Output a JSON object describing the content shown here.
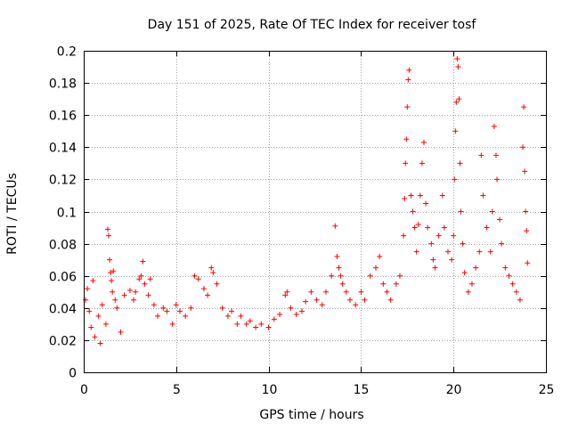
{
  "chart_data": {
    "type": "scatter",
    "title": "Day 151 of 2025, Rate Of TEC Index for receiver tosf",
    "xlabel": "GPS time / hours",
    "ylabel": "ROTI / TECUs",
    "xlim": [
      0,
      25
    ],
    "ylim": [
      0,
      0.2
    ],
    "x_ticks": [
      0,
      5,
      10,
      15,
      20,
      25
    ],
    "x_tick_labels": [
      "0",
      "5",
      "10",
      "15",
      "20",
      "25"
    ],
    "y_ticks": [
      0,
      0.02,
      0.04,
      0.06,
      0.08,
      0.1,
      0.12,
      0.14,
      0.16,
      0.18,
      0.2
    ],
    "y_tick_labels": [
      "0",
      "0.02",
      "0.04",
      "0.06",
      "0.08",
      "0.1",
      "0.12",
      "0.14",
      "0.16",
      "0.18",
      "0.2"
    ],
    "grid": true,
    "marker": "+",
    "series": [
      {
        "name": "ROTI",
        "color": "#ff0000",
        "points": [
          [
            0.1,
            0.045
          ],
          [
            0.2,
            0.052
          ],
          [
            0.3,
            0.038
          ],
          [
            0.4,
            0.028
          ],
          [
            0.5,
            0.057
          ],
          [
            0.6,
            0.022
          ],
          [
            0.8,
            0.035
          ],
          [
            0.9,
            0.018
          ],
          [
            1.0,
            0.042
          ],
          [
            1.2,
            0.03
          ],
          [
            1.3,
            0.089
          ],
          [
            1.35,
            0.085
          ],
          [
            1.4,
            0.07
          ],
          [
            1.45,
            0.062
          ],
          [
            1.5,
            0.057
          ],
          [
            1.55,
            0.05
          ],
          [
            1.6,
            0.063
          ],
          [
            1.7,
            0.045
          ],
          [
            1.8,
            0.04
          ],
          [
            2.0,
            0.025
          ],
          [
            2.2,
            0.048
          ],
          [
            2.5,
            0.051
          ],
          [
            2.7,
            0.045
          ],
          [
            2.8,
            0.05
          ],
          [
            3.0,
            0.058
          ],
          [
            3.1,
            0.06
          ],
          [
            3.2,
            0.069
          ],
          [
            3.3,
            0.055
          ],
          [
            3.5,
            0.048
          ],
          [
            3.6,
            0.058
          ],
          [
            3.8,
            0.042
          ],
          [
            4.0,
            0.035
          ],
          [
            4.3,
            0.04
          ],
          [
            4.5,
            0.038
          ],
          [
            4.8,
            0.03
          ],
          [
            5.0,
            0.042
          ],
          [
            5.2,
            0.038
          ],
          [
            5.5,
            0.035
          ],
          [
            5.8,
            0.04
          ],
          [
            6.0,
            0.06
          ],
          [
            6.2,
            0.058
          ],
          [
            6.5,
            0.052
          ],
          [
            6.7,
            0.048
          ],
          [
            6.9,
            0.065
          ],
          [
            7.0,
            0.062
          ],
          [
            7.2,
            0.055
          ],
          [
            7.5,
            0.04
          ],
          [
            7.8,
            0.035
          ],
          [
            8.0,
            0.038
          ],
          [
            8.3,
            0.03
          ],
          [
            8.5,
            0.035
          ],
          [
            8.8,
            0.03
          ],
          [
            9.0,
            0.032
          ],
          [
            9.3,
            0.028
          ],
          [
            9.6,
            0.03
          ],
          [
            10.0,
            0.028
          ],
          [
            10.3,
            0.033
          ],
          [
            10.6,
            0.036
          ],
          [
            10.9,
            0.048
          ],
          [
            11.0,
            0.05
          ],
          [
            11.2,
            0.04
          ],
          [
            11.5,
            0.036
          ],
          [
            11.8,
            0.038
          ],
          [
            12.0,
            0.044
          ],
          [
            12.3,
            0.05
          ],
          [
            12.6,
            0.045
          ],
          [
            12.9,
            0.042
          ],
          [
            13.1,
            0.05
          ],
          [
            13.4,
            0.06
          ],
          [
            13.6,
            0.091
          ],
          [
            13.7,
            0.072
          ],
          [
            13.8,
            0.065
          ],
          [
            13.9,
            0.06
          ],
          [
            14.0,
            0.055
          ],
          [
            14.2,
            0.05
          ],
          [
            14.4,
            0.045
          ],
          [
            14.7,
            0.042
          ],
          [
            15.0,
            0.05
          ],
          [
            15.2,
            0.045
          ],
          [
            15.5,
            0.06
          ],
          [
            15.8,
            0.065
          ],
          [
            16.0,
            0.072
          ],
          [
            16.2,
            0.055
          ],
          [
            16.4,
            0.05
          ],
          [
            16.6,
            0.045
          ],
          [
            16.9,
            0.055
          ],
          [
            17.1,
            0.06
          ],
          [
            17.3,
            0.085
          ],
          [
            17.35,
            0.108
          ],
          [
            17.4,
            0.13
          ],
          [
            17.45,
            0.145
          ],
          [
            17.5,
            0.165
          ],
          [
            17.55,
            0.182
          ],
          [
            17.6,
            0.188
          ],
          [
            17.7,
            0.11
          ],
          [
            17.8,
            0.1
          ],
          [
            17.9,
            0.09
          ],
          [
            18.0,
            0.075
          ],
          [
            18.1,
            0.092
          ],
          [
            18.2,
            0.11
          ],
          [
            18.3,
            0.13
          ],
          [
            18.4,
            0.143
          ],
          [
            18.5,
            0.105
          ],
          [
            18.6,
            0.09
          ],
          [
            18.8,
            0.08
          ],
          [
            18.9,
            0.07
          ],
          [
            19.0,
            0.065
          ],
          [
            19.2,
            0.085
          ],
          [
            19.4,
            0.11
          ],
          [
            19.5,
            0.09
          ],
          [
            19.7,
            0.075
          ],
          [
            19.9,
            0.07
          ],
          [
            20.0,
            0.085
          ],
          [
            20.05,
            0.12
          ],
          [
            20.1,
            0.15
          ],
          [
            20.15,
            0.168
          ],
          [
            20.2,
            0.195
          ],
          [
            20.25,
            0.19
          ],
          [
            20.3,
            0.17
          ],
          [
            20.35,
            0.13
          ],
          [
            20.4,
            0.1
          ],
          [
            20.5,
            0.08
          ],
          [
            20.6,
            0.062
          ],
          [
            20.8,
            0.05
          ],
          [
            21.0,
            0.055
          ],
          [
            21.2,
            0.065
          ],
          [
            21.4,
            0.075
          ],
          [
            21.5,
            0.135
          ],
          [
            21.6,
            0.11
          ],
          [
            21.8,
            0.09
          ],
          [
            22.0,
            0.075
          ],
          [
            22.1,
            0.1
          ],
          [
            22.2,
            0.153
          ],
          [
            22.3,
            0.135
          ],
          [
            22.35,
            0.12
          ],
          [
            22.5,
            0.095
          ],
          [
            22.6,
            0.08
          ],
          [
            22.8,
            0.065
          ],
          [
            23.0,
            0.06
          ],
          [
            23.2,
            0.055
          ],
          [
            23.4,
            0.05
          ],
          [
            23.6,
            0.045
          ],
          [
            23.75,
            0.14
          ],
          [
            23.8,
            0.165
          ],
          [
            23.85,
            0.125
          ],
          [
            23.9,
            0.1
          ],
          [
            23.95,
            0.088
          ],
          [
            24.0,
            0.068
          ]
        ]
      }
    ]
  }
}
